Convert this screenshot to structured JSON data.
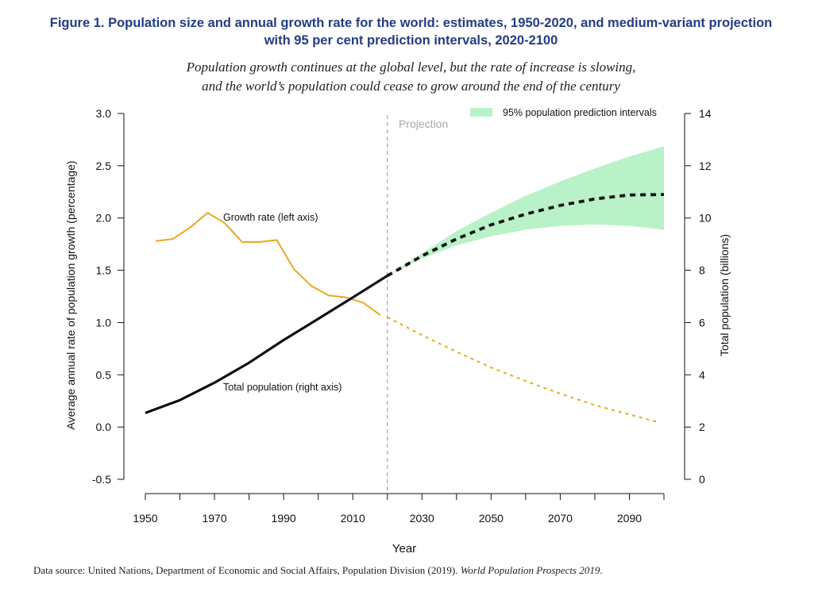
{
  "figure": {
    "title_line1": "Figure 1. Population size and annual growth rate for the world: estimates, 1950-2020, and medium-variant projection",
    "title_line2": "with 95 per cent prediction intervals, 2020-2100",
    "subtitle_line1": "Population growth continues at the global level, but the rate of increase is slowing,",
    "subtitle_line2": "and the world’s population could cease to grow around the end of the century",
    "source_prefix": "Data source: United Nations, Department of Economic and Social Affairs, Population Division (2019). ",
    "source_italic": "World Population Prospects 2019",
    "source_suffix": "."
  },
  "chart_data": {
    "type": "line",
    "xlabel": "Year",
    "ylabel_left": "Average annual rate of population growth (percentage)",
    "ylabel_right": "Total population (billions)",
    "x_range": [
      1950,
      2100
    ],
    "x_ticks": [
      "1950",
      "1970",
      "1990",
      "2010",
      "2030",
      "2050",
      "2070",
      "2090"
    ],
    "y_left_range": [
      -0.5,
      3.0
    ],
    "y_left_ticks": [
      "-0.5",
      "0.0",
      "0.5",
      "1.0",
      "1.5",
      "2.0",
      "2.5",
      "3.0"
    ],
    "y_right_range": [
      0,
      14
    ],
    "y_right_ticks": [
      "0",
      "2",
      "4",
      "6",
      "8",
      "10",
      "12",
      "14"
    ],
    "projection_start": 2020,
    "projection_label": "Projection",
    "grid": false,
    "legend": "top-right",
    "colors": {
      "growth": "#e8a823",
      "population": "#111111",
      "interval": "#b9f2c9",
      "projection_line": "#c79ab8"
    },
    "series": [
      {
        "name": "Growth rate (left axis)",
        "axis": "left",
        "color": "#e8a823",
        "estimate": {
          "x": [
            1953,
            1958,
            1963,
            1968,
            1973,
            1978,
            1983,
            1988,
            1993,
            1998,
            2003,
            2008,
            2013,
            2018
          ],
          "y": [
            1.78,
            1.8,
            1.91,
            2.05,
            1.95,
            1.77,
            1.77,
            1.79,
            1.51,
            1.35,
            1.26,
            1.24,
            1.19,
            1.07
          ]
        },
        "projection": {
          "x": [
            2020,
            2030,
            2040,
            2050,
            2060,
            2070,
            2080,
            2090,
            2098
          ],
          "y": [
            1.05,
            0.88,
            0.72,
            0.57,
            0.44,
            0.32,
            0.21,
            0.12,
            0.05
          ]
        }
      },
      {
        "name": "Total population (right axis)",
        "axis": "right",
        "color": "#111111",
        "estimate": {
          "x": [
            1950,
            1960,
            1970,
            1980,
            1990,
            2000,
            2010,
            2020
          ],
          "y": [
            2.54,
            3.03,
            3.7,
            4.46,
            5.33,
            6.14,
            6.96,
            7.79
          ]
        },
        "projection": {
          "x": [
            2020,
            2030,
            2040,
            2050,
            2060,
            2070,
            2080,
            2090,
            2100
          ],
          "y": [
            7.79,
            8.55,
            9.2,
            9.74,
            10.15,
            10.48,
            10.73,
            10.88,
            10.9
          ]
        }
      }
    ],
    "interval": {
      "name": "95% population prediction intervals",
      "x": [
        2020,
        2030,
        2040,
        2050,
        2060,
        2070,
        2080,
        2090,
        2100
      ],
      "lower": [
        7.79,
        8.45,
        8.95,
        9.3,
        9.55,
        9.7,
        9.75,
        9.7,
        9.55
      ],
      "upper": [
        7.79,
        8.65,
        9.5,
        10.2,
        10.85,
        11.4,
        11.9,
        12.35,
        12.75
      ]
    }
  }
}
